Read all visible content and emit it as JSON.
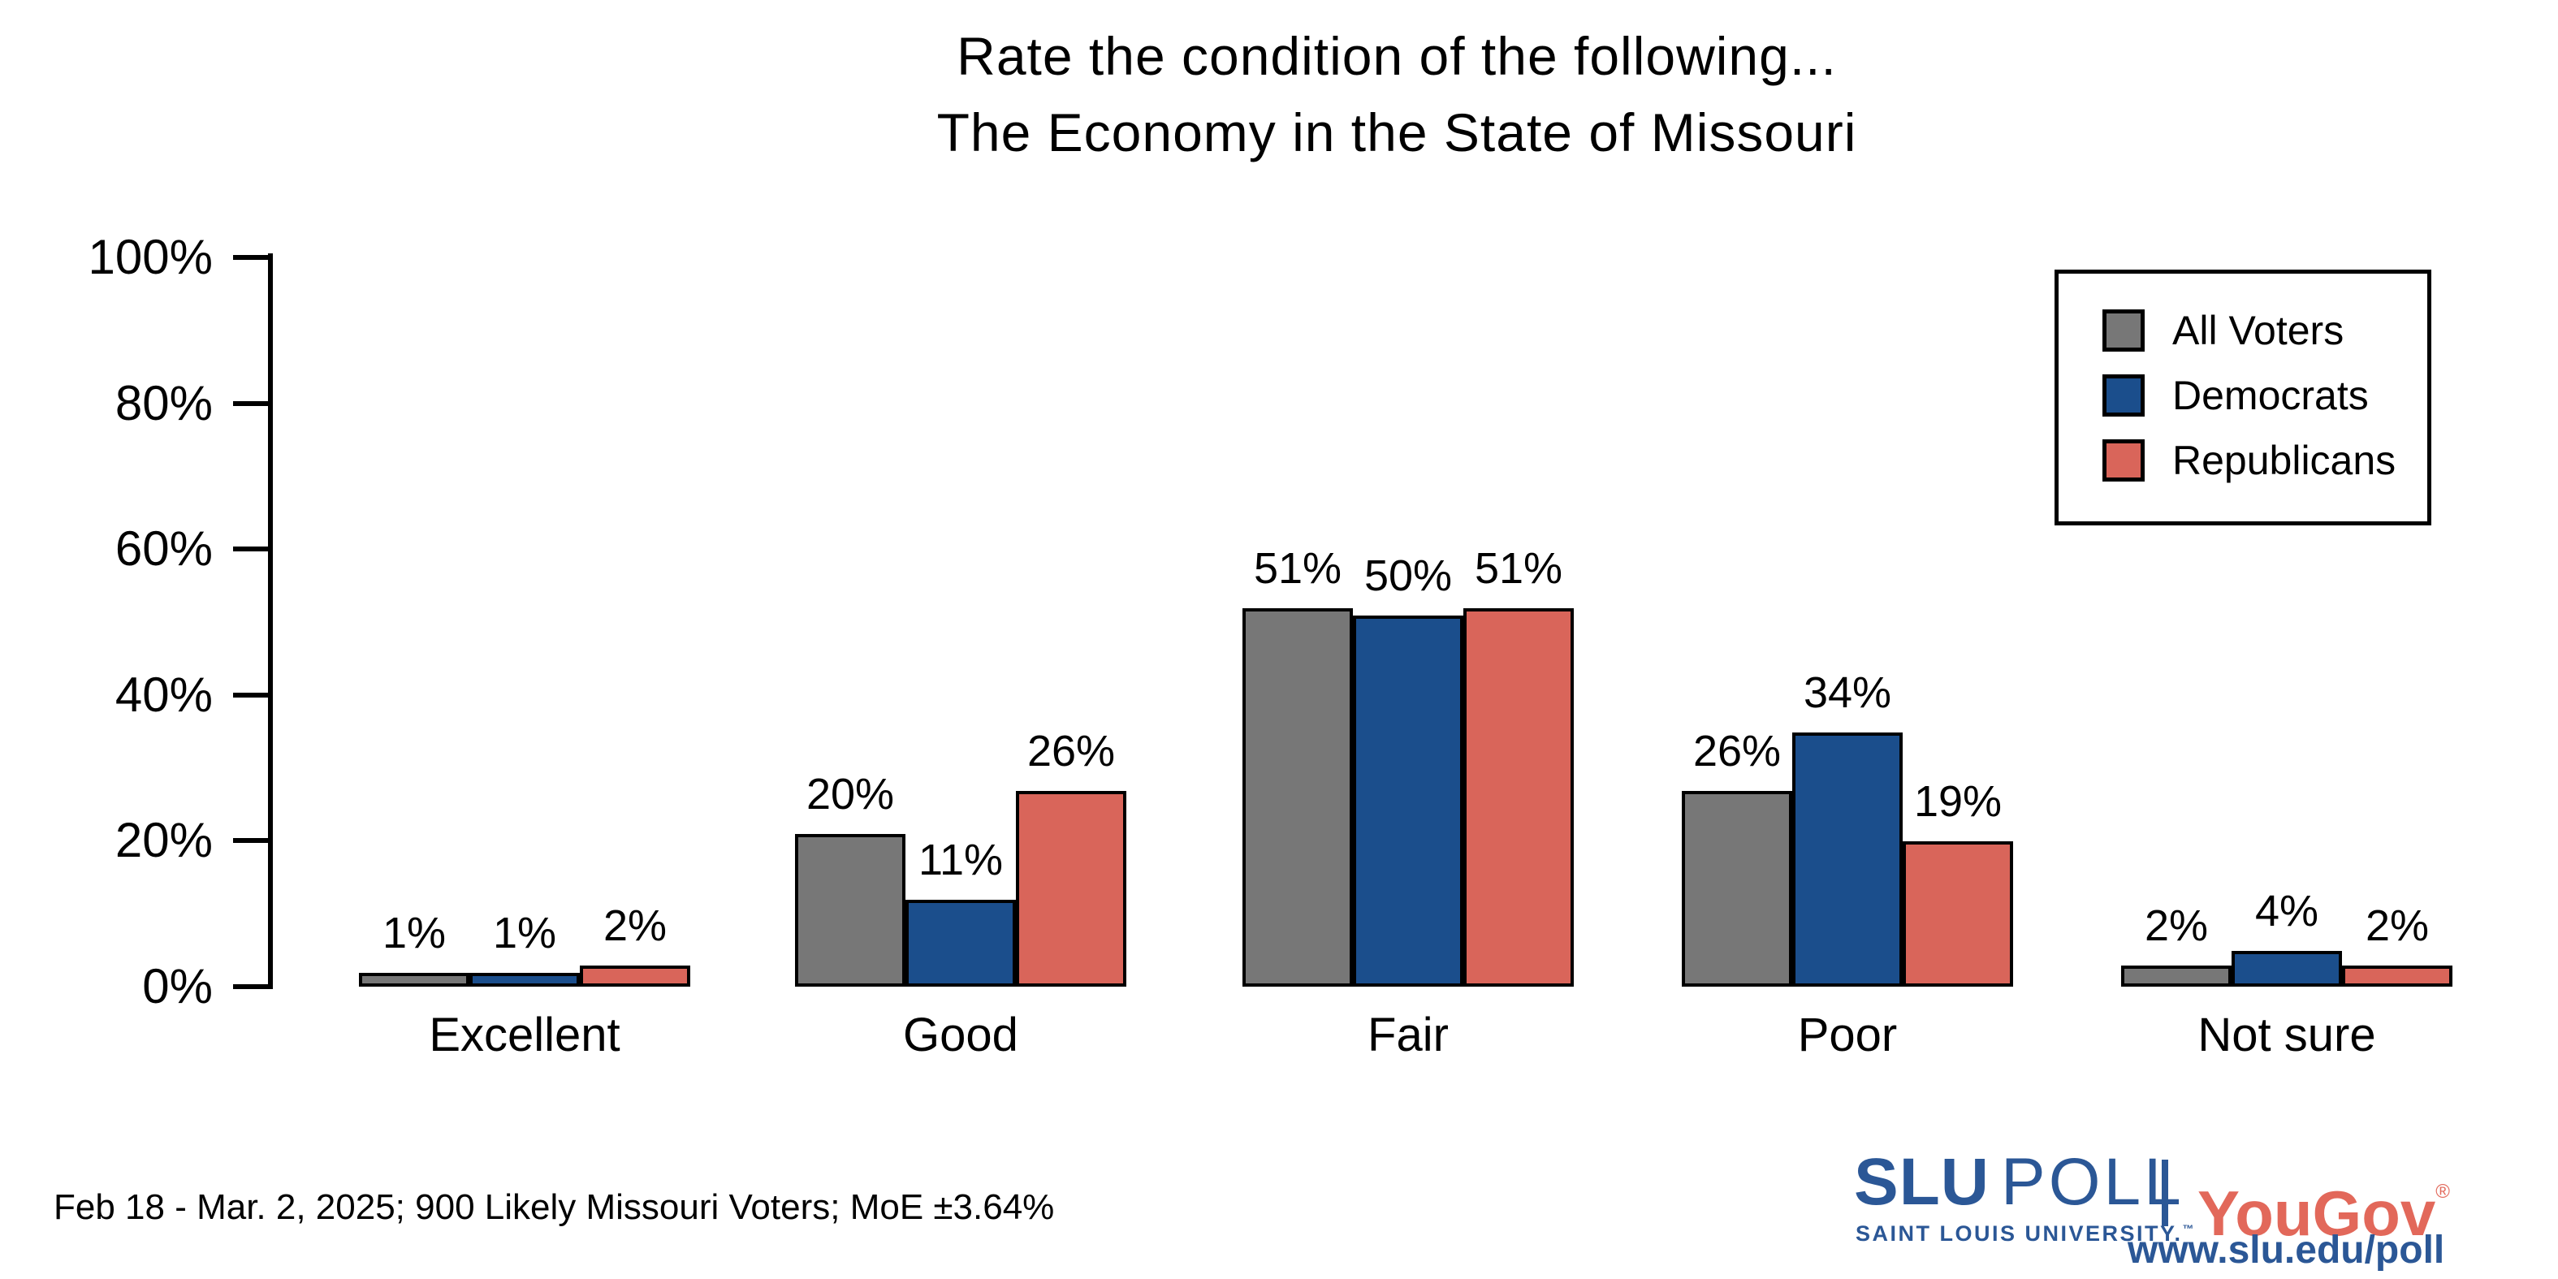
{
  "title": {
    "line1": "Rate the condition of the following...",
    "line2": "The Economy in the State of Missouri"
  },
  "chart_data": {
    "type": "bar",
    "categories": [
      "Excellent",
      "Good",
      "Fair",
      "Poor",
      "Not sure"
    ],
    "series": [
      {
        "name": "All Voters",
        "color": "#777777",
        "values": [
          1,
          20,
          51,
          26,
          2
        ]
      },
      {
        "name": "Democrats",
        "color": "#1B4E8C",
        "values": [
          1,
          11,
          50,
          34,
          4
        ]
      },
      {
        "name": "Republicans",
        "color": "#D9655A",
        "values": [
          2,
          26,
          51,
          19,
          2
        ]
      }
    ],
    "title": "Rate the condition of the following... The Economy in the State of Missouri",
    "xlabel": "",
    "ylabel": "",
    "ylim": [
      0,
      100
    ],
    "y_ticks": [
      "0%",
      "20%",
      "40%",
      "60%",
      "80%",
      "100%"
    ],
    "grid": false,
    "legend_position": "top-right",
    "value_label_suffix": "%",
    "bar_outline_color": "#000000"
  },
  "footer": {
    "caption": "Feb 18 - Mar. 2, 2025; 900 Likely Missouri Voters; MoE ±3.64%",
    "slu_logo": {
      "brand_bold": "SLU",
      "brand_rest": "POLL",
      "subtitle": "SAINT LOUIS UNIVERSITY.",
      "tm": "™",
      "url": "www.slu.edu/poll",
      "color": "#2B5796"
    },
    "yougov": {
      "name": "YouGov",
      "registered": "®",
      "color": "#E2685A"
    }
  }
}
